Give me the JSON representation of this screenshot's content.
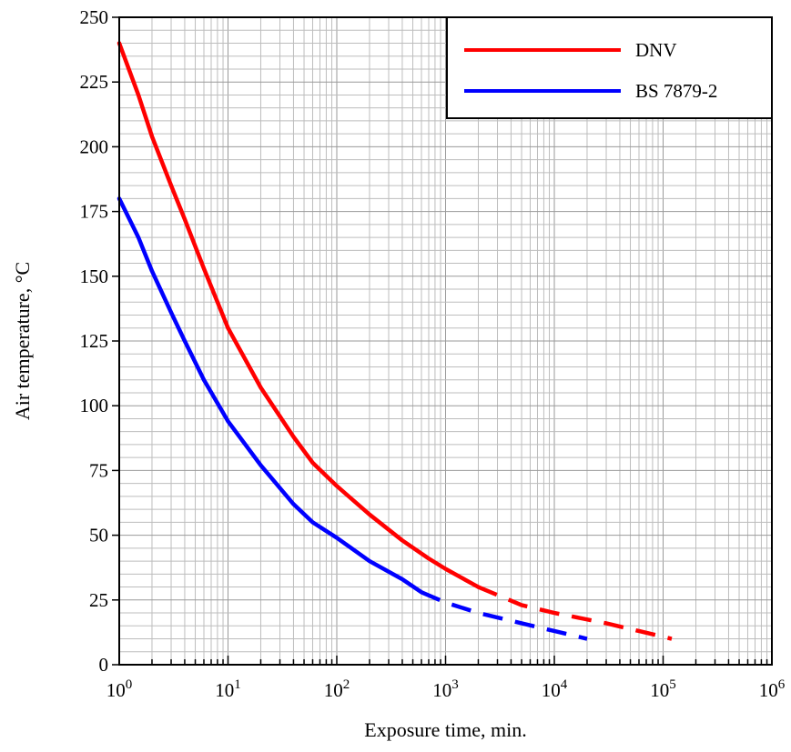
{
  "chart_data": {
    "type": "line",
    "title": "",
    "xlabel": "Exposure time, min.",
    "ylabel": "Air temperature, °C",
    "x_scale": "log",
    "xlim": [
      1,
      1000000
    ],
    "ylim": [
      0,
      250
    ],
    "grid": true,
    "legend_position": "top-right",
    "x_tick_labels": [
      {
        "base": "10",
        "exp": "0"
      },
      {
        "base": "10",
        "exp": "1"
      },
      {
        "base": "10",
        "exp": "2"
      },
      {
        "base": "10",
        "exp": "3"
      },
      {
        "base": "10",
        "exp": "4"
      },
      {
        "base": "10",
        "exp": "5"
      },
      {
        "base": "10",
        "exp": "6"
      }
    ],
    "y_tick_labels": [
      "0",
      "25",
      "50",
      "75",
      "100",
      "125",
      "150",
      "175",
      "200",
      "225",
      "250"
    ],
    "series": [
      {
        "name": "DNV",
        "color": "#ff0000",
        "solid": [
          [
            1,
            240
          ],
          [
            1.5,
            220
          ],
          [
            2,
            204
          ],
          [
            3,
            185
          ],
          [
            4,
            172
          ],
          [
            6,
            153
          ],
          [
            10,
            130
          ],
          [
            20,
            107
          ],
          [
            40,
            88
          ],
          [
            60,
            78
          ],
          [
            100,
            69
          ],
          [
            200,
            58
          ],
          [
            400,
            48
          ],
          [
            700,
            41
          ],
          [
            1000,
            37
          ],
          [
            2000,
            30
          ]
        ],
        "dashed": [
          [
            2000,
            30
          ],
          [
            5000,
            23
          ],
          [
            10000,
            20
          ],
          [
            30000,
            16
          ],
          [
            60000,
            13
          ],
          [
            120000,
            10
          ]
        ]
      },
      {
        "name": "BS 7879-2",
        "color": "#0000ff",
        "solid": [
          [
            1,
            180
          ],
          [
            1.5,
            165
          ],
          [
            2,
            152
          ],
          [
            3,
            136
          ],
          [
            4,
            125
          ],
          [
            6,
            110
          ],
          [
            10,
            94
          ],
          [
            20,
            77
          ],
          [
            40,
            62
          ],
          [
            60,
            55
          ],
          [
            100,
            49
          ],
          [
            200,
            40
          ],
          [
            400,
            33
          ],
          [
            600,
            28
          ]
        ],
        "dashed": [
          [
            600,
            28
          ],
          [
            1000,
            24
          ],
          [
            2000,
            20
          ],
          [
            5000,
            16
          ],
          [
            10000,
            13
          ],
          [
            20000,
            10
          ]
        ]
      }
    ]
  }
}
